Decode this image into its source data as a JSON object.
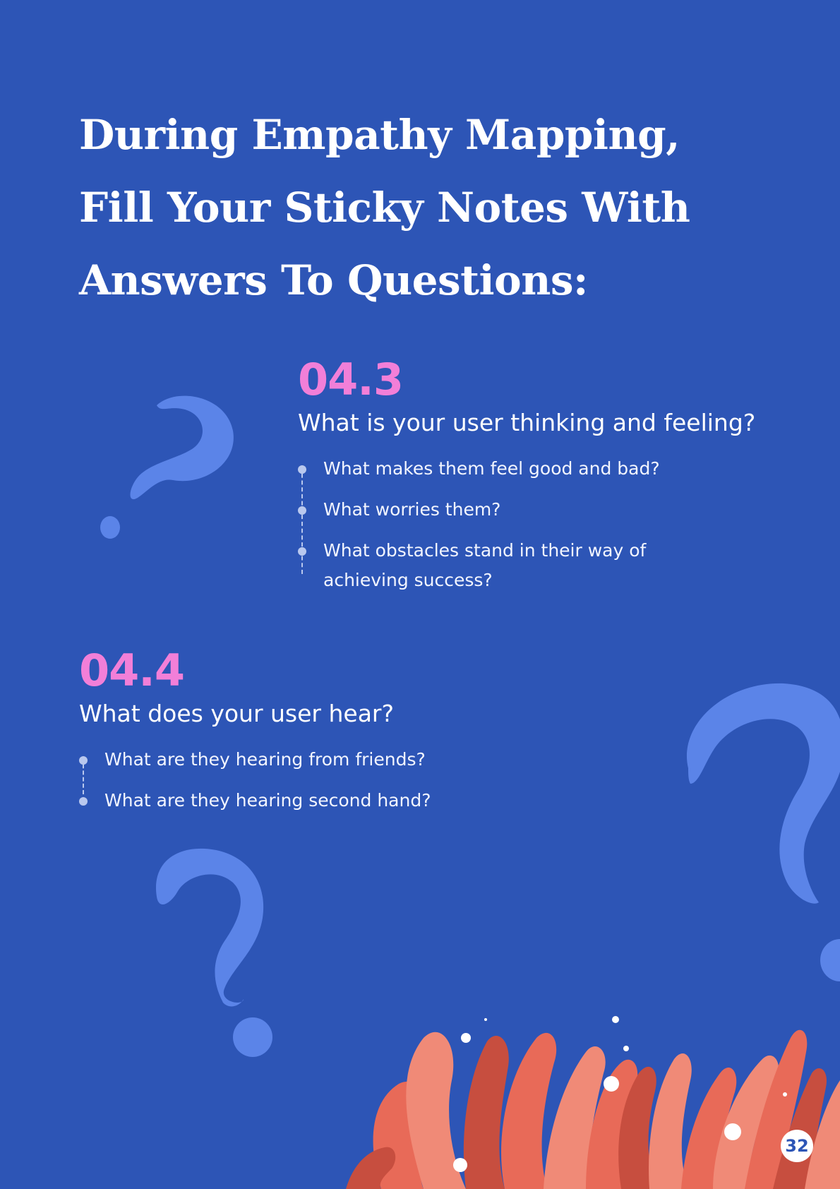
{
  "title": "During Empathy Mapping, Fill Your Sticky Notes With Answers To Questions:",
  "sections": [
    {
      "number": "04.3",
      "question": "What is your user thinking and feeling?",
      "bullets": [
        "What makes them feel good and bad?",
        "What worries them?",
        "What obstacles stand in their way of achieving success?"
      ]
    },
    {
      "number": "04.4",
      "question": "What does your user hear?",
      "bullets": [
        "What are they hearing from friends?",
        "What are they hearing second hand?"
      ]
    }
  ],
  "page_number": "32",
  "colors": {
    "background": "#2d55b6",
    "accent": "#f27fd8",
    "decor_blue": "#5b84e8",
    "coral": "#e86a58"
  },
  "icons": [
    "question-mark-icon",
    "coral-illustration"
  ]
}
